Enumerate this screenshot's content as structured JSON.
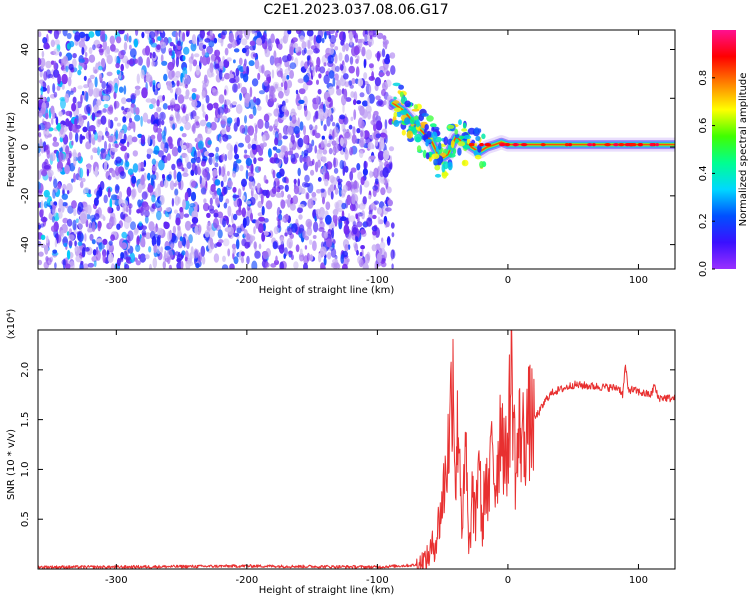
{
  "title": "C2E1.2023.037.08.06.G17",
  "chart_data": [
    {
      "type": "heatmap",
      "title": "C2E1.2023.037.08.06.G17",
      "xlabel": "Height of straight line (km)",
      "ylabel": "Frequency (Hz)",
      "xlim": [
        -360,
        128
      ],
      "ylim": [
        -50,
        48
      ],
      "xticks": [
        -300,
        -200,
        -100,
        0,
        100
      ],
      "yticks": [
        -40,
        -20,
        0,
        20,
        40
      ],
      "grid": false,
      "colorbar": {
        "label": "Normalized spectral amplitude",
        "range": [
          0.0,
          1.0
        ],
        "ticks": [
          0.0,
          0.2,
          0.4,
          0.6,
          0.8
        ],
        "colormap": "rainbow",
        "colors": [
          "#d5c6f4",
          "#7a2cf0",
          "#1a1aff",
          "#00c8ff",
          "#00ff70",
          "#ffff00",
          "#ff8000",
          "#ff0000",
          "#ff0090"
        ]
      },
      "signal_track": {
        "x": [
          -88,
          -80,
          -72,
          -65,
          -58,
          -52,
          -46,
          -40,
          -34,
          -28,
          -22,
          -16,
          -10,
          -5,
          0,
          10,
          20,
          40,
          60,
          80,
          100,
          120,
          128
        ],
        "y": [
          18,
          15,
          10,
          6,
          2,
          -5,
          -3,
          4,
          2,
          0,
          -2,
          0,
          1,
          2,
          1,
          1,
          1,
          1,
          1,
          1,
          1,
          1,
          1
        ]
      },
      "noise_region": {
        "x": [
          -360,
          -88
        ],
        "y": [
          -50,
          48
        ]
      }
    },
    {
      "type": "line",
      "title": "",
      "xlabel": "Height of straight line (km)",
      "ylabel": "SNR (10 * v/v)",
      "y_multiplier": "(x10⁴)",
      "xlim": [
        -360,
        128
      ],
      "ylim": [
        0,
        2.4
      ],
      "xticks": [
        -300,
        -200,
        -100,
        0,
        100
      ],
      "yticks": [
        0.5,
        1.0,
        1.5,
        2.0
      ],
      "grid": false,
      "series_color": "#e83030",
      "series": [
        {
          "x": [
            -360,
            -300,
            -200,
            -100,
            -70,
            -62,
            -55,
            -50,
            -45,
            -42,
            -40,
            -38,
            -35,
            -32,
            -30,
            -27,
            -25,
            -22,
            -20,
            -17,
            -15,
            -12,
            -10,
            -7,
            -5,
            -2,
            0,
            3,
            6,
            9,
            12,
            15,
            20,
            25,
            30,
            35,
            40,
            50,
            60,
            70,
            80,
            85,
            88,
            90,
            92,
            95,
            100,
            105,
            110,
            112,
            115,
            120,
            128
          ],
          "y": [
            0.02,
            0.02,
            0.03,
            0.02,
            0.04,
            0.1,
            0.3,
            0.7,
            1.3,
            2.1,
            0.8,
            1.6,
            0.4,
            1.2,
            0.1,
            0.8,
            0.4,
            1.3,
            0.3,
            1.0,
            0.6,
            1.4,
            0.8,
            1.2,
            1.6,
            1.0,
            1.3,
            2.05,
            0.9,
            1.4,
            1.3,
            1.45,
            1.5,
            1.6,
            1.72,
            1.78,
            1.8,
            1.85,
            1.84,
            1.83,
            1.82,
            1.82,
            1.75,
            2.05,
            1.8,
            1.8,
            1.78,
            1.76,
            1.75,
            1.85,
            1.72,
            1.72,
            1.71
          ]
        }
      ]
    }
  ]
}
